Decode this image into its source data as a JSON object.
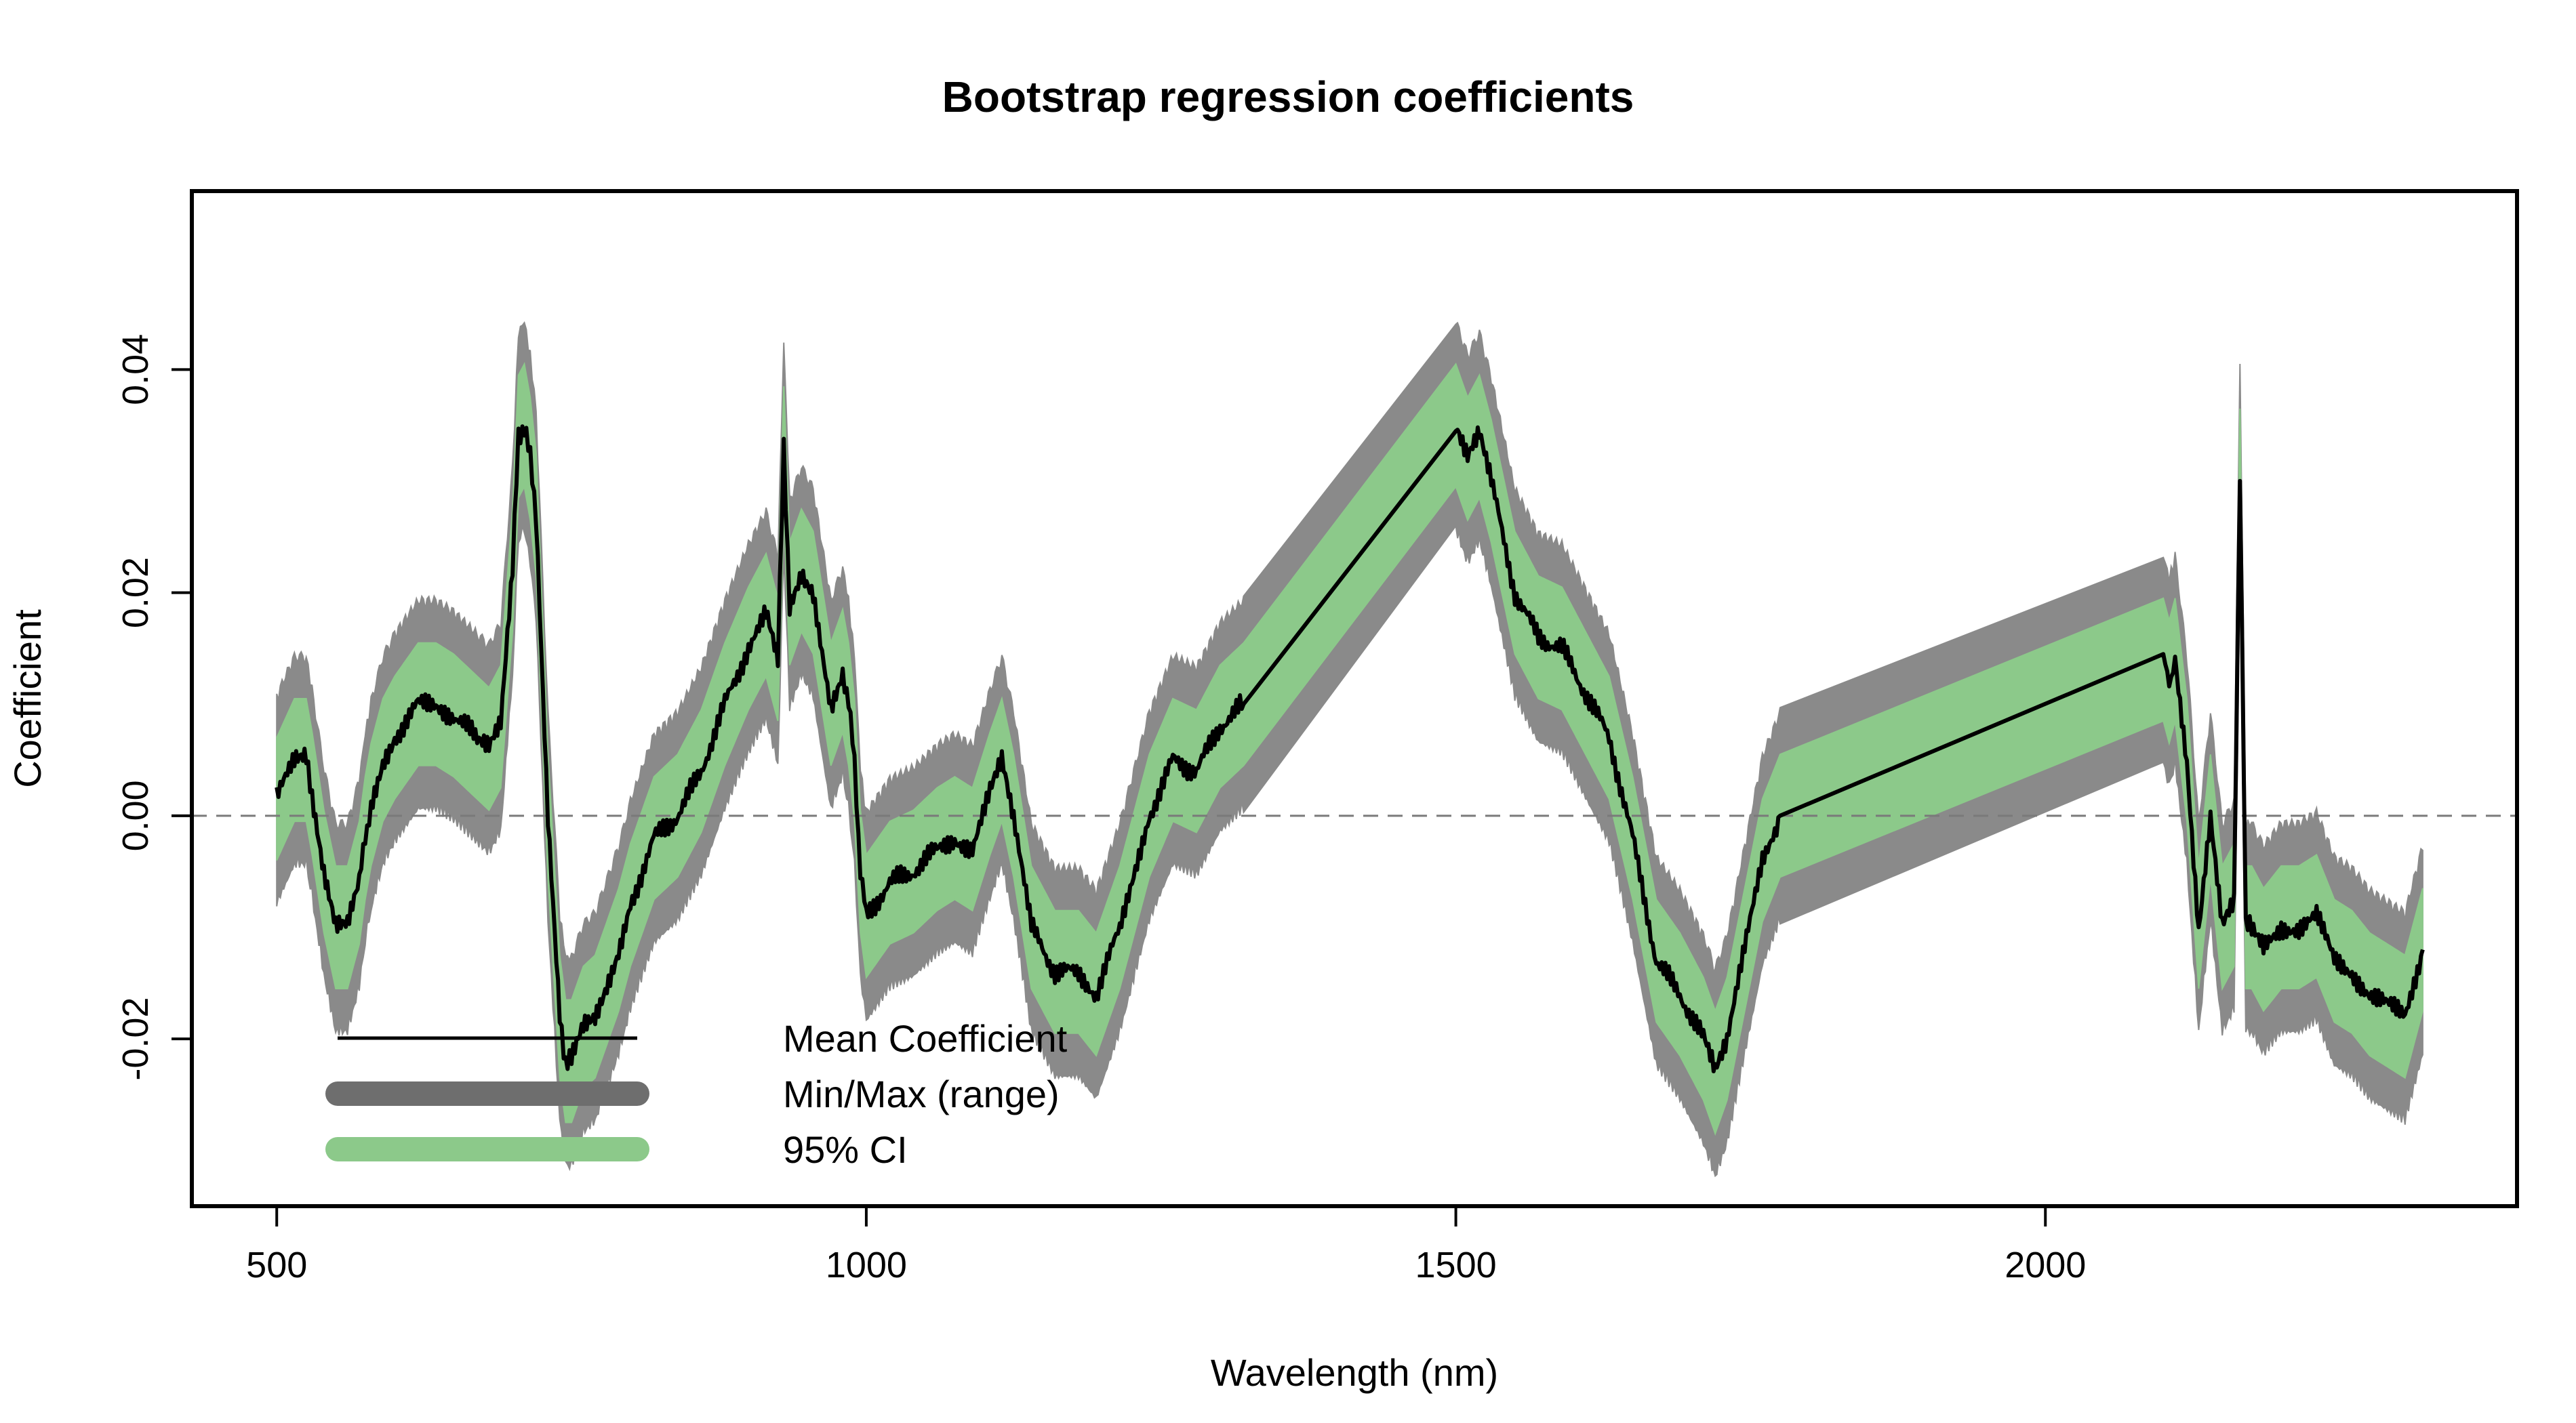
{
  "chart_data": {
    "type": "line",
    "title": "Bootstrap regression coefficients",
    "xlabel": "Wavelength (nm)",
    "ylabel": "Coefficient",
    "xlim": [
      428,
      2400
    ],
    "ylim": [
      -0.035,
      0.056
    ],
    "x_ticks": [
      500,
      1000,
      1500,
      2000
    ],
    "y_ticks": [
      -0.02,
      0.0,
      0.02,
      0.04
    ],
    "x_tick_labels": [
      "500",
      "1000",
      "1500",
      "2000"
    ],
    "y_tick_labels": [
      "-0.02",
      "0.00",
      "0.02",
      "0.04"
    ],
    "reference_line": {
      "y": 0,
      "style": "dashed"
    },
    "grid": false,
    "legend": {
      "placement": "bottom-left",
      "entries": [
        {
          "label": "Mean Coefficient",
          "color": "#000000"
        },
        {
          "label": "Min/Max (range)",
          "color": "#6e6e6e"
        },
        {
          "label": "95% CI",
          "color": "#8cc98a"
        }
      ]
    },
    "colors": {
      "mean": "#000000",
      "range": "#8a8a8a",
      "ci": "#8cc98a",
      "reference": "#7a7a7a"
    },
    "series": [
      {
        "name": "Mean Coefficient",
        "x": [
          500,
          515,
          525,
          530,
          540,
          550,
          560,
          570,
          575,
          580,
          590,
          600,
          620,
          635,
          650,
          670,
          680,
          690,
          700,
          705,
          710,
          715,
          720,
          730,
          740,
          745,
          750,
          760,
          770,
          780,
          790,
          800,
          820,
          840,
          860,
          880,
          900,
          915,
          925,
          930,
          935,
          945,
          955,
          970,
          980,
          985,
          990,
          995,
          1000,
          1020,
          1040,
          1060,
          1075,
          1090,
          1105,
          1115,
          1125,
          1140,
          1160,
          1180,
          1195,
          1215,
          1240,
          1260,
          1280,
          1300,
          1320,
          1500,
          1510,
          1520,
          1530,
          1550,
          1570,
          1590,
          1610,
          1630,
          1650,
          1670,
          1690,
          1710,
          1720,
          1730,
          1745,
          1760,
          1775,
          2100,
          2105,
          2110,
          2120,
          2130,
          2140,
          2150,
          2160,
          2165,
          2170,
          2175,
          2185,
          2200,
          2215,
          2230,
          2245,
          2260,
          2275,
          2290,
          2305,
          2320
        ],
        "values": [
          0.0015,
          0.005,
          0.005,
          0.002,
          -0.005,
          -0.01,
          -0.01,
          -0.006,
          -0.002,
          0.001,
          0.005,
          0.007,
          0.01,
          0.01,
          0.009,
          0.007,
          0.006,
          0.008,
          0.022,
          0.034,
          0.035,
          0.032,
          0.027,
          0.0,
          -0.018,
          -0.022,
          -0.022,
          -0.019,
          -0.018,
          -0.015,
          -0.012,
          -0.008,
          -0.002,
          0.0,
          0.004,
          0.01,
          0.015,
          0.018,
          0.014,
          0.033,
          0.019,
          0.022,
          0.02,
          0.01,
          0.013,
          0.01,
          0.005,
          -0.005,
          -0.009,
          -0.006,
          -0.005,
          -0.003,
          -0.002,
          -0.003,
          0.002,
          0.005,
          0.0,
          -0.01,
          -0.014,
          -0.014,
          -0.016,
          -0.01,
          0.0,
          0.005,
          0.004,
          0.008,
          0.01,
          0.035,
          0.032,
          0.034,
          0.03,
          0.02,
          0.016,
          0.015,
          0.011,
          0.007,
          -0.002,
          -0.013,
          -0.016,
          -0.02,
          -0.023,
          -0.02,
          -0.012,
          -0.004,
          0.0,
          0.014,
          0.012,
          0.014,
          0.005,
          -0.01,
          0.0,
          -0.01,
          -0.008,
          0.031,
          -0.01,
          -0.01,
          -0.012,
          -0.01,
          -0.01,
          -0.009,
          -0.013,
          -0.014,
          -0.016,
          -0.017,
          -0.018,
          -0.012
        ]
      }
    ]
  }
}
